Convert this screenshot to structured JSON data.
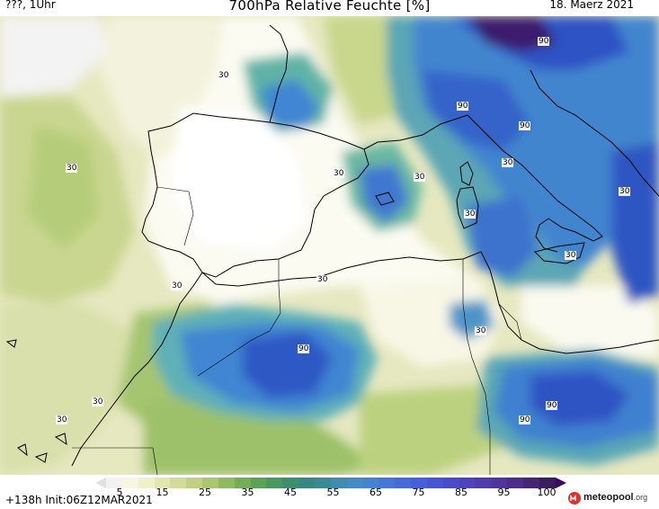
{
  "header": {
    "left_label": "???, 1Uhr",
    "title": "700hPa Relative Feuchte [%]",
    "date": "18. Maerz 2021"
  },
  "contour_labels": {
    "l30": "30",
    "l90": "90"
  },
  "colorbar": {
    "ticks": [
      "5",
      "15",
      "25",
      "35",
      "45",
      "55",
      "65",
      "75",
      "85",
      "95",
      "100"
    ],
    "colors": [
      "#f2f2f2",
      "#f8f6e0",
      "#eff0cc",
      "#e3e6b0",
      "#d2db98",
      "#c0d184",
      "#a9c671",
      "#90ba62",
      "#75ad57",
      "#5ba257",
      "#48975f",
      "#3c8e6d",
      "#37887f",
      "#3a8a96",
      "#3f8cb0",
      "#448ac3",
      "#4682d0",
      "#4677d6",
      "#466bd9",
      "#4660d8",
      "#4755d2",
      "#4a4bc9",
      "#4d43bd",
      "#4f3bad",
      "#4f349c",
      "#4c2d88",
      "#462673",
      "#3a1d5d"
    ],
    "under_color": "#e0e0e0",
    "over_color": "#3a0a60"
  },
  "footer": {
    "init_text": "+138h  Init:06Z12MAR2021",
    "logo_main": "meteopool",
    "logo_suffix": ".org"
  },
  "colors": {
    "very_dry": "#ffffff",
    "dry": "#f0efd8",
    "olive": "#dfe4b5",
    "green": "#b6d07c",
    "teal": "#6bb7a8",
    "blue": "#3f86d2",
    "dark_blue": "#2c4fc0",
    "purple": "#3a1d6e",
    "coast": "#000000"
  }
}
